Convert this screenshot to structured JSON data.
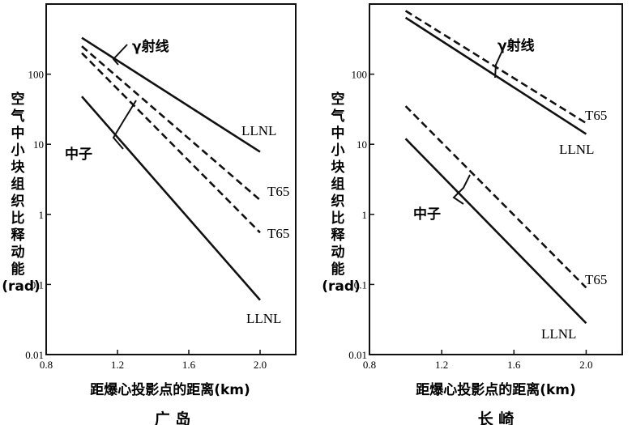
{
  "chart_data": [
    {
      "type": "line",
      "title": "广 岛",
      "xlabel": "距爆心投影点的距离(km)",
      "ylabel": "空气中小块组织比释动能(rad)",
      "yscale": "log",
      "xlim": [
        0.8,
        2.2
      ],
      "ylim": [
        0.01,
        1000
      ],
      "xticks": [
        "0.8",
        "1.2",
        "1.6",
        "2.0"
      ],
      "yticks": [
        "0.01",
        "0.1",
        "1",
        "10",
        "100"
      ],
      "series": [
        {
          "name": "LLNL",
          "group": "γ射线",
          "style": "solid",
          "x": [
            1.0,
            2.0
          ],
          "y": [
            330,
            7.8
          ]
        },
        {
          "name": "T65",
          "group": "γ射线",
          "style": "dashed",
          "x": [
            1.0,
            2.0
          ],
          "y": [
            250,
            1.6
          ]
        },
        {
          "name": "T65",
          "group": "中子",
          "style": "dashed",
          "x": [
            1.0,
            2.0
          ],
          "y": [
            200,
            0.55
          ]
        },
        {
          "name": "LLNL",
          "group": "中子",
          "style": "solid",
          "x": [
            1.0,
            2.0
          ],
          "y": [
            48,
            0.06
          ]
        }
      ],
      "annotations": [
        "γ射线",
        "中子"
      ]
    },
    {
      "type": "line",
      "title": "长 崎",
      "xlabel": "距爆心投影点的距离(km)",
      "ylabel": "空气中小块组织比释动能(rad)",
      "yscale": "log",
      "xlim": [
        0.8,
        2.2
      ],
      "ylim": [
        0.01,
        1000
      ],
      "xticks": [
        "0.8",
        "1.2",
        "1.6",
        "2.0"
      ],
      "yticks": [
        "0.01",
        "0.1",
        "1",
        "10",
        "100"
      ],
      "series": [
        {
          "name": "T65",
          "group": "γ射线",
          "style": "dashed",
          "x": [
            1.0,
            2.0
          ],
          "y": [
            800,
            20
          ]
        },
        {
          "name": "LLNL",
          "group": "γ射线",
          "style": "solid",
          "x": [
            1.0,
            2.0
          ],
          "y": [
            640,
            14
          ]
        },
        {
          "name": "T65",
          "group": "中子",
          "style": "dashed",
          "x": [
            1.0,
            2.0
          ],
          "y": [
            35,
            0.09
          ]
        },
        {
          "name": "LLNL",
          "group": "中子",
          "style": "solid",
          "x": [
            1.0,
            2.0
          ],
          "y": [
            12,
            0.028
          ]
        }
      ],
      "annotations": [
        "γ射线",
        "中子"
      ]
    }
  ]
}
